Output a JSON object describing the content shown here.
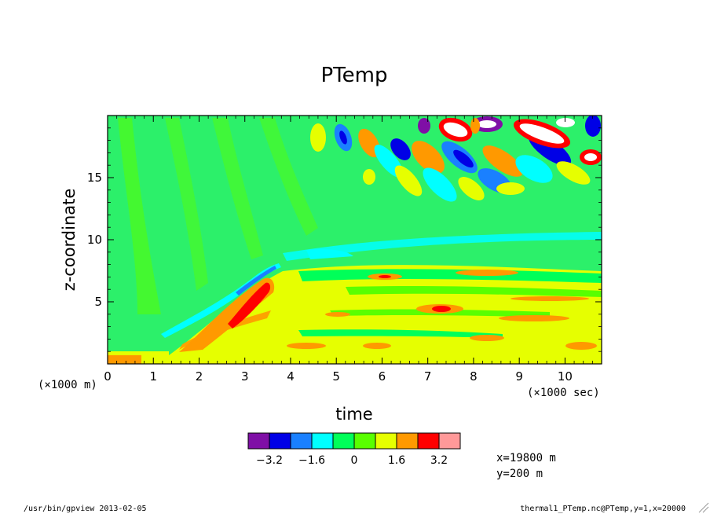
{
  "chart_data": {
    "type": "heatmap",
    "title": "PTemp",
    "xlabel": "time",
    "ylabel": "z-coordinate",
    "x_unit": "(×1000 sec)",
    "y_unit": "(×1000 m)",
    "xlim": [
      0,
      10.8
    ],
    "ylim": [
      0,
      20
    ],
    "x_ticks": [
      0,
      1,
      2,
      3,
      4,
      5,
      6,
      7,
      8,
      9,
      10
    ],
    "x_tick_labels": [
      "0",
      "1",
      "2",
      "3",
      "4",
      "5",
      "6",
      "7",
      "8",
      "9",
      "10"
    ],
    "y_ticks": [
      5,
      10,
      15
    ],
    "y_tick_labels": [
      "5",
      "10",
      "15"
    ],
    "colorbar": {
      "levels": [
        -4.0,
        -3.2,
        -2.4,
        -1.6,
        -0.8,
        0,
        0.8,
        1.6,
        2.4,
        3.2,
        4.0
      ],
      "colors": [
        "#7f0fa6",
        "#0000e6",
        "#1a80ff",
        "#00ffff",
        "#00ff59",
        "#59ff00",
        "#e6ff00",
        "#ff9900",
        "#ff0000",
        "#ff9999"
      ],
      "tick_values": [
        -3.2,
        -1.6,
        0,
        1.6,
        3.2
      ],
      "tick_labels": [
        "−3.2",
        "−1.6",
        "0",
        "1.6",
        "3.2"
      ]
    },
    "annotations": {
      "x_position": "x=19800 m",
      "y_position": "y=200 m"
    },
    "footer_left": "/usr/bin/gpview  2013-02-05",
    "footer_right": "thermal1_PTemp.nc@PTemp,y=1,x=20000"
  }
}
